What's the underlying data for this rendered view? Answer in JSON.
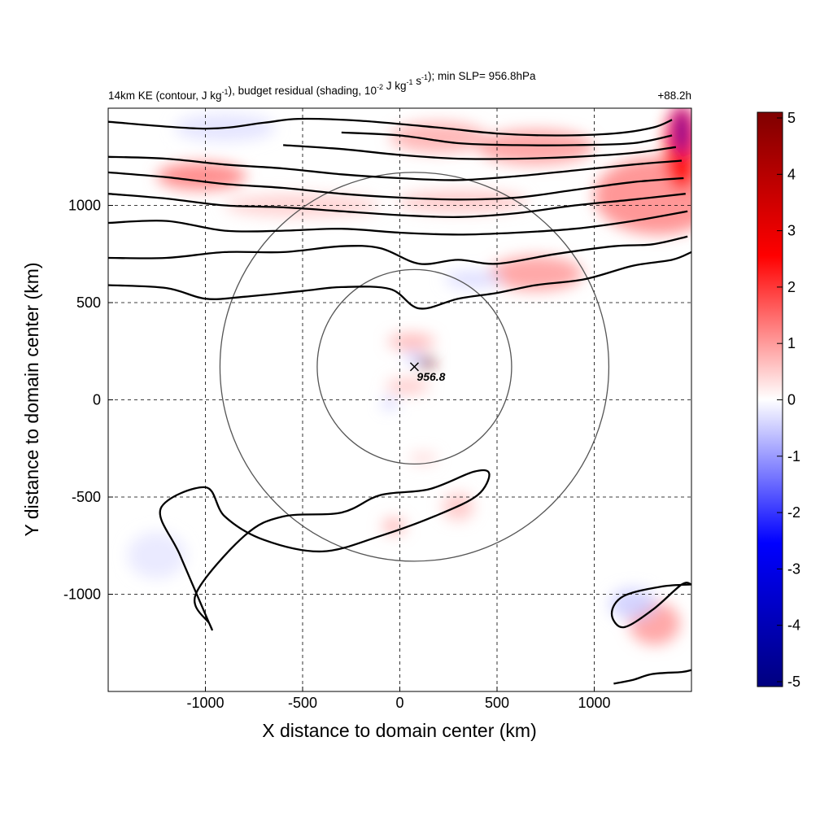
{
  "title": {
    "parts": [
      {
        "t": "14km KE (contour, J kg"
      },
      {
        "t": "-1",
        "sup": true
      },
      {
        "t": "), budget residual (shading, 10"
      },
      {
        "t": "-2",
        "sup": true
      },
      {
        "t": " J kg"
      },
      {
        "t": "-1",
        "sup": true
      },
      {
        "t": " s"
      },
      {
        "t": "-1",
        "sup": true
      },
      {
        "t": "); min SLP= 956.8hPa"
      }
    ],
    "time_label": "+88.2h"
  },
  "chart_data": {
    "type": "heatmap",
    "title": "14km KE (contour, J kg-1), budget residual (shading, 10-2 J kg-1 s-1); min SLP= 956.8hPa",
    "time_label": "+88.2h",
    "xlabel": "X distance to domain center (km)",
    "ylabel": "Y distance to domain center (km)",
    "xlim": [
      -1500,
      1500
    ],
    "ylim": [
      -1500,
      1500
    ],
    "xticks": [
      -1000,
      -500,
      0,
      500,
      1000
    ],
    "yticks": [
      -1000,
      -500,
      0,
      500,
      1000
    ],
    "xtick_labels": [
      "-1000",
      "-500",
      "0",
      "500",
      "1000"
    ],
    "ytick_labels": [
      "-1000",
      "-500",
      "0",
      "500",
      "1000"
    ],
    "grid": "dashed",
    "colorbar": {
      "range": [
        -5,
        5
      ],
      "ticks": [
        "5",
        "4",
        "3",
        "2",
        "1",
        "0",
        "-1",
        "-2",
        "-3",
        "-4",
        "-5"
      ],
      "colors": [
        "#00007f",
        "#0000ff",
        "#ffffff",
        "#ff0000",
        "#7f0000"
      ]
    },
    "storm_center": {
      "x": 75,
      "y": 170,
      "min_slp_label": "956.8"
    },
    "range_rings_km": [
      500,
      1000
    ],
    "shading_regions": [
      {
        "cx": 1330,
        "cy": 1050,
        "rx": 330,
        "ry": 200,
        "v": 1.2
      },
      {
        "cx": 1450,
        "cy": 1300,
        "rx": 90,
        "ry": 220,
        "v": 2.5
      },
      {
        "cx": 700,
        "cy": 1300,
        "rx": 300,
        "ry": 90,
        "v": 1.0
      },
      {
        "cx": 200,
        "cy": 1350,
        "rx": 250,
        "ry": 80,
        "v": 0.8
      },
      {
        "cx": -1020,
        "cy": 1150,
        "rx": 230,
        "ry": 70,
        "v": 1.3
      },
      {
        "cx": 700,
        "cy": 650,
        "rx": 240,
        "ry": 90,
        "v": 1.0
      },
      {
        "cx": 320,
        "cy": 1020,
        "rx": 340,
        "ry": 55,
        "v": 0.6
      },
      {
        "cx": -500,
        "cy": 1000,
        "rx": 400,
        "ry": 60,
        "v": 0.5
      },
      {
        "cx": 140,
        "cy": 190,
        "rx": 40,
        "ry": 30,
        "v": 5.0
      },
      {
        "cx": 60,
        "cy": 300,
        "rx": 120,
        "ry": 40,
        "v": 0.8
      },
      {
        "cx": 40,
        "cy": 70,
        "rx": 110,
        "ry": 40,
        "v": 0.6
      },
      {
        "cx": 1310,
        "cy": -1150,
        "rx": 130,
        "ry": 110,
        "v": 1.0
      },
      {
        "cx": 300,
        "cy": -550,
        "rx": 80,
        "ry": 70,
        "v": 0.6
      },
      {
        "cx": -30,
        "cy": -650,
        "rx": 60,
        "ry": 40,
        "v": 0.8
      },
      {
        "cx": 120,
        "cy": -300,
        "rx": 70,
        "ry": 25,
        "v": 0.5
      },
      {
        "cx": 380,
        "cy": 620,
        "rx": 150,
        "ry": 40,
        "v": -0.4
      },
      {
        "cx": -900,
        "cy": 1400,
        "rx": 260,
        "ry": 70,
        "v": -0.3
      },
      {
        "cx": 1450,
        "cy": 1380,
        "rx": 30,
        "ry": 120,
        "v": -4.0
      },
      {
        "cx": 70,
        "cy": 220,
        "rx": 45,
        "ry": 20,
        "v": -0.8
      },
      {
        "cx": -50,
        "cy": -20,
        "rx": 40,
        "ry": 25,
        "v": -0.6
      },
      {
        "cx": -1250,
        "cy": -800,
        "rx": 150,
        "ry": 120,
        "v": -0.25
      },
      {
        "cx": 1200,
        "cy": -1050,
        "rx": 120,
        "ry": 80,
        "v": -0.5
      }
    ],
    "ke_contours": [
      [
        [
          -1500,
          1430
        ],
        [
          -1000,
          1395
        ],
        [
          -700,
          1425
        ],
        [
          -520,
          1445
        ],
        [
          -200,
          1435
        ],
        [
          200,
          1400
        ],
        [
          500,
          1370
        ],
        [
          800,
          1360
        ],
        [
          1100,
          1370
        ],
        [
          1300,
          1400
        ],
        [
          1400,
          1440
        ]
      ],
      [
        [
          -300,
          1375
        ],
        [
          0,
          1360
        ],
        [
          300,
          1320
        ],
        [
          600,
          1310
        ],
        [
          900,
          1310
        ],
        [
          1200,
          1320
        ],
        [
          1400,
          1360
        ]
      ],
      [
        [
          -600,
          1310
        ],
        [
          -300,
          1290
        ],
        [
          0,
          1260
        ],
        [
          300,
          1240
        ],
        [
          600,
          1240
        ],
        [
          900,
          1250
        ],
        [
          1200,
          1270
        ],
        [
          1420,
          1300
        ]
      ],
      [
        [
          -1500,
          1250
        ],
        [
          -1200,
          1240
        ],
        [
          -900,
          1210
        ],
        [
          -600,
          1190
        ],
        [
          -300,
          1160
        ],
        [
          0,
          1140
        ],
        [
          300,
          1130
        ],
        [
          600,
          1150
        ],
        [
          900,
          1180
        ],
        [
          1200,
          1210
        ],
        [
          1450,
          1230
        ]
      ],
      [
        [
          -1500,
          1170
        ],
        [
          -1200,
          1145
        ],
        [
          -900,
          1110
        ],
        [
          -600,
          1090
        ],
        [
          -300,
          1060
        ],
        [
          0,
          1040
        ],
        [
          300,
          1030
        ],
        [
          600,
          1040
        ],
        [
          900,
          1080
        ],
        [
          1200,
          1120
        ],
        [
          1460,
          1140
        ]
      ],
      [
        [
          -1500,
          1060
        ],
        [
          -1200,
          1035
        ],
        [
          -900,
          1000
        ],
        [
          -600,
          990
        ],
        [
          -300,
          970
        ],
        [
          0,
          950
        ],
        [
          300,
          940
        ],
        [
          600,
          960
        ],
        [
          900,
          1000
        ],
        [
          1200,
          1030
        ],
        [
          1470,
          1060
        ]
      ],
      [
        [
          -1500,
          910
        ],
        [
          -1200,
          920
        ],
        [
          -900,
          870
        ],
        [
          -600,
          870
        ],
        [
          -300,
          880
        ],
        [
          0,
          860
        ],
        [
          300,
          850
        ],
        [
          600,
          860
        ],
        [
          900,
          880
        ],
        [
          1200,
          920
        ],
        [
          1480,
          970
        ]
      ],
      [
        [
          -1500,
          730
        ],
        [
          -1200,
          730
        ],
        [
          -900,
          760
        ],
        [
          -600,
          760
        ],
        [
          -300,
          790
        ],
        [
          -100,
          780
        ],
        [
          100,
          700
        ],
        [
          300,
          720
        ],
        [
          500,
          700
        ],
        [
          800,
          750
        ],
        [
          1100,
          790
        ],
        [
          1300,
          800
        ],
        [
          1480,
          840
        ]
      ],
      [
        [
          -1500,
          590
        ],
        [
          -1200,
          575
        ],
        [
          -1000,
          520
        ],
        [
          -800,
          530
        ],
        [
          -500,
          560
        ],
        [
          -300,
          580
        ],
        [
          -50,
          570
        ],
        [
          100,
          470
        ],
        [
          300,
          520
        ],
        [
          500,
          550
        ],
        [
          700,
          590
        ],
        [
          950,
          620
        ],
        [
          1200,
          690
        ],
        [
          1400,
          720
        ],
        [
          1500,
          760
        ]
      ]
    ],
    "ke_closed_contours": [
      [
        [
          -980,
          -1150
        ],
        [
          -1050,
          -1000
        ],
        [
          -800,
          -700
        ],
        [
          -600,
          -600
        ],
        [
          -300,
          -580
        ],
        [
          -100,
          -490
        ],
        [
          150,
          -460
        ],
        [
          380,
          -370
        ],
        [
          460,
          -380
        ],
        [
          400,
          -490
        ],
        [
          200,
          -590
        ],
        [
          -100,
          -700
        ],
        [
          -400,
          -780
        ],
        [
          -700,
          -720
        ],
        [
          -900,
          -600
        ],
        [
          -1000,
          -450
        ],
        [
          -1230,
          -560
        ],
        [
          -1130,
          -800
        ],
        [
          -980,
          -1150
        ]
      ],
      [
        [
          1500,
          -950
        ],
        [
          1350,
          -960
        ],
        [
          1150,
          -1010
        ],
        [
          1090,
          -1100
        ],
        [
          1150,
          -1170
        ],
        [
          1300,
          -1080
        ],
        [
          1450,
          -950
        ],
        [
          1500,
          -950
        ]
      ],
      [
        [
          1100,
          -1460
        ],
        [
          1200,
          -1440
        ],
        [
          1300,
          -1410
        ],
        [
          1450,
          -1400
        ],
        [
          1500,
          -1390
        ]
      ]
    ]
  }
}
